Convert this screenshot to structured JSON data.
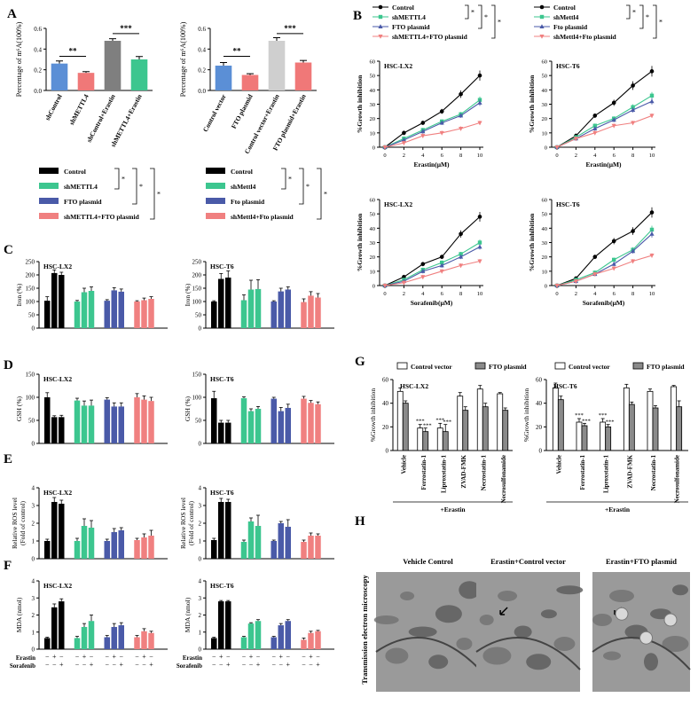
{
  "colors": {
    "black": "#000000",
    "green": "#3cc68f",
    "blue": "#4a5aa8",
    "pink": "#f08080",
    "gray1": "#7f7f7f",
    "gray2": "#b7b7b7",
    "blueA": "#5b8fd6",
    "pinkA": "#f07878",
    "lgray": "#cfcfcf",
    "white": "#ffffff",
    "dgray": "#8a8a8a"
  },
  "panel_letters": {
    "A": "A",
    "B": "B",
    "C": "C",
    "D": "D",
    "E": "E",
    "F": "F",
    "G": "G",
    "H": "H"
  },
  "panelA": {
    "ylabel": "Percentage of m⁶A(100%)",
    "sig": [
      "**",
      "***"
    ],
    "left": {
      "categories": [
        "shControl",
        "shMETTL4",
        "shControl+Erastin",
        "shMETTL4+Erastin"
      ],
      "values": [
        0.26,
        0.17,
        0.48,
        0.3
      ],
      "errors": [
        0.025,
        0.012,
        0.02,
        0.028
      ],
      "ylim": [
        0,
        0.6
      ],
      "ticks": [
        "0.0",
        "0.2",
        "0.4",
        "0.6"
      ]
    },
    "right": {
      "categories": [
        "Control vector",
        "FTO plasmid",
        "Control vector+Erastin",
        "FTO plasmid+Erastin"
      ],
      "values": [
        0.24,
        0.15,
        0.48,
        0.27
      ],
      "errors": [
        0.03,
        0.012,
        0.03,
        0.02
      ],
      "ylim": [
        0,
        0.6
      ],
      "ticks": [
        "0.0",
        "0.2",
        "0.4",
        "0.6"
      ]
    }
  },
  "panelB": {
    "legend_left": [
      "Control",
      "shMETTL4",
      "FTO plasmid",
      "shMETTL4+FTO plasmid"
    ],
    "legend_right": [
      "Control",
      "shMettl4",
      "Fto plasmid",
      "shMettl4+Fto plasmid"
    ],
    "ylabel": "%Growth inhibition",
    "xticks": [
      "0",
      "2",
      "4",
      "6",
      "8",
      "10"
    ],
    "yticks": [
      "0",
      "10",
      "20",
      "30",
      "40",
      "50",
      "60"
    ],
    "charts": [
      {
        "title": "HSC-LX2",
        "xlabel": "Erastin(μM)",
        "x": [
          0,
          2,
          4,
          6,
          8,
          10
        ],
        "series": [
          {
            "name": "Control",
            "values": [
              0,
              10,
              17,
              25,
              37,
              50
            ]
          },
          {
            "name": "shMETTL4",
            "values": [
              0,
              6,
              12,
              18,
              23,
              33
            ]
          },
          {
            "name": "FTO plasmid",
            "values": [
              0,
              5,
              11,
              17,
              22,
              31
            ]
          },
          {
            "name": "shMETTL4+FTO plasmid",
            "values": [
              0,
              3,
              8,
              10,
              13,
              17
            ]
          }
        ]
      },
      {
        "title": "HSC-T6",
        "xlabel": "Erastin(μM)",
        "x": [
          0,
          2,
          4,
          6,
          8,
          10
        ],
        "series": [
          {
            "name": "Control",
            "values": [
              0,
              8,
              22,
              31,
              43,
              53
            ]
          },
          {
            "name": "shMettl4",
            "values": [
              0,
              7,
              15,
              20,
              28,
              36
            ]
          },
          {
            "name": "Fto plasmid",
            "values": [
              0,
              6,
              13,
              19,
              26,
              32
            ]
          },
          {
            "name": "shMettl4+Fto plasmid",
            "values": [
              0,
              6,
              10,
              15,
              17,
              22
            ]
          }
        ]
      },
      {
        "title": "HSC-LX2",
        "xlabel": "Sorafenib(μM)",
        "x": [
          0,
          2,
          4,
          6,
          8,
          10
        ],
        "series": [
          {
            "name": "Control",
            "values": [
              0,
              6,
              15,
              20,
              36,
              48
            ]
          },
          {
            "name": "shMETTL4",
            "values": [
              0,
              4,
              11,
              16,
              22,
              30
            ]
          },
          {
            "name": "FTO plasmid",
            "values": [
              0,
              3,
              10,
              14,
              20,
              27
            ]
          },
          {
            "name": "shMETTL4+FTO plasmid",
            "values": [
              0,
              2,
              6,
              10,
              14,
              17
            ]
          }
        ]
      },
      {
        "title": "HSC-T6",
        "xlabel": "Sorafenib(μM)",
        "x": [
          0,
          2,
          4,
          6,
          8,
          10
        ],
        "series": [
          {
            "name": "Control",
            "values": [
              0,
              5,
              20,
              31,
              38,
              51
            ]
          },
          {
            "name": "shMettl4",
            "values": [
              0,
              4,
              9,
              18,
              25,
              39
            ]
          },
          {
            "name": "Fto plasmid",
            "values": [
              0,
              3,
              8,
              15,
              24,
              36
            ]
          },
          {
            "name": "shMettl4+Fto plasmid",
            "values": [
              0,
              3,
              8,
              12,
              17,
              21
            ]
          }
        ]
      }
    ]
  },
  "groupLegend": {
    "left": [
      "Control",
      "shMETTL4",
      "FTO plasmid",
      "shMETTL4+FTO plasmid"
    ],
    "right": [
      "Control",
      "shMettl4",
      "Fto plasmid",
      "shMettl4+Fto plasmid"
    ]
  },
  "panelsCDEF": {
    "rows": [
      {
        "key": "C",
        "ylabel": "Iron (%)",
        "yticks": [
          "0",
          "50",
          "100",
          "150",
          "200",
          "250"
        ],
        "ylim": [
          0,
          250
        ],
        "charts": [
          {
            "title": "HSC-LX2",
            "values": [
              [
                103,
                207,
                200
              ],
              [
                100,
                135,
                140
              ],
              [
                103,
                142,
                137
              ],
              [
                100,
                105,
                110
              ]
            ],
            "errors": [
              [
                15,
                12,
                10
              ],
              [
                4,
                15,
                15
              ],
              [
                4,
                10,
                10
              ],
              [
                3,
                8,
                8
              ]
            ]
          },
          {
            "title": "HSC-T6",
            "values": [
              [
                100,
                185,
                190
              ],
              [
                105,
                145,
                147
              ],
              [
                100,
                138,
                145
              ],
              [
                98,
                122,
                115
              ]
            ],
            "errors": [
              [
                3,
                20,
                25
              ],
              [
                20,
                35,
                35
              ],
              [
                3,
                12,
                10
              ],
              [
                12,
                15,
                15
              ]
            ]
          }
        ]
      },
      {
        "key": "D",
        "ylabel": "GSH (%)",
        "yticks": [
          "0",
          "50",
          "100",
          "150"
        ],
        "ylim": [
          0,
          150
        ],
        "charts": [
          {
            "title": "HSC-LX2",
            "values": [
              [
                100,
                57,
                57
              ],
              [
                93,
                82,
                82
              ],
              [
                95,
                80,
                80
              ],
              [
                100,
                95,
                92
              ]
            ],
            "errors": [
              [
                10,
                3,
                4
              ],
              [
                5,
                10,
                12
              ],
              [
                4,
                8,
                8
              ],
              [
                8,
                8,
                8
              ]
            ]
          },
          {
            "title": "HSC-T6",
            "values": [
              [
                98,
                45,
                45
              ],
              [
                98,
                70,
                75
              ],
              [
                97,
                70,
                77
              ],
              [
                97,
                88,
                85
              ]
            ],
            "errors": [
              [
                15,
                5,
                5
              ],
              [
                3,
                5,
                5
              ],
              [
                3,
                8,
                8
              ],
              [
                5,
                5,
                5
              ]
            ]
          }
        ]
      },
      {
        "key": "E",
        "ylabel": "Relative ROS level\n(Fold of control)",
        "yticks": [
          "0",
          "1",
          "2",
          "3",
          "4"
        ],
        "ylim": [
          0,
          4
        ],
        "charts": [
          {
            "title": "HSC-LX2",
            "values": [
              [
                1.0,
                3.2,
                3.1
              ],
              [
                1.0,
                1.85,
                1.75
              ],
              [
                1.0,
                1.5,
                1.6
              ],
              [
                1.05,
                1.2,
                1.3
              ]
            ],
            "errors": [
              [
                0.1,
                0.25,
                0.2
              ],
              [
                0.15,
                0.4,
                0.4
              ],
              [
                0.1,
                0.2,
                0.15
              ],
              [
                0.1,
                0.2,
                0.3
              ]
            ]
          },
          {
            "title": "HSC-T6",
            "values": [
              [
                1.05,
                3.2,
                3.2
              ],
              [
                0.95,
                2.1,
                1.85
              ],
              [
                1.0,
                2.0,
                1.8
              ],
              [
                0.95,
                1.3,
                1.3
              ]
            ],
            "errors": [
              [
                0.1,
                0.2,
                0.15
              ],
              [
                0.1,
                0.2,
                0.6
              ],
              [
                0.05,
                0.1,
                0.4
              ],
              [
                0.1,
                0.15,
                0.1
              ]
            ]
          }
        ]
      },
      {
        "key": "F",
        "ylabel": "MDA (nmol)",
        "yticks": [
          "0",
          "1",
          "2",
          "3",
          "4"
        ],
        "ylim": [
          0,
          4
        ],
        "charts": [
          {
            "title": "HSC-LX2",
            "values": [
              [
                0.65,
                2.45,
                2.8
              ],
              [
                0.65,
                1.3,
                1.65
              ],
              [
                0.7,
                1.3,
                1.4
              ],
              [
                0.7,
                1.05,
                0.95
              ]
            ],
            "errors": [
              [
                0.05,
                0.2,
                0.15
              ],
              [
                0.1,
                0.2,
                0.35
              ],
              [
                0.1,
                0.2,
                0.15
              ],
              [
                0.1,
                0.15,
                0.1
              ]
            ]
          },
          {
            "title": "HSC-T6",
            "values": [
              [
                0.65,
                2.8,
                2.8
              ],
              [
                0.7,
                1.5,
                1.65
              ],
              [
                0.7,
                1.4,
                1.65
              ],
              [
                0.55,
                0.95,
                1.05
              ]
            ],
            "errors": [
              [
                0.05,
                0.05,
                0.05
              ],
              [
                0.05,
                0.05,
                0.08
              ],
              [
                0.05,
                0.1,
                0.08
              ],
              [
                0.1,
                0.1,
                0.05
              ]
            ]
          }
        ]
      }
    ],
    "treatment_labels": [
      "Erastin",
      "Sorafenib"
    ],
    "erastin_signs": [
      "−",
      "+",
      "−",
      "−",
      "+",
      "−",
      "−",
      "+",
      "−",
      "−",
      "+",
      "−"
    ],
    "sorafenib_signs": [
      "−",
      "−",
      "+",
      "−",
      "−",
      "+",
      "−",
      "−",
      "+",
      "−",
      "−",
      "+"
    ]
  },
  "panelG": {
    "legend": [
      "Control vector",
      "FTO plasmid"
    ],
    "ylabel": "%Growth inhibition",
    "yticks": [
      "0",
      "20",
      "40",
      "60"
    ],
    "ylim": [
      0,
      60
    ],
    "categories": [
      "Vehicle",
      "Ferrostatin-1",
      "Liproxstatin-1",
      "ZVAD-FMK",
      "Necrostatin-1",
      "Necrosulfonamide"
    ],
    "footer": "+Erastin",
    "charts": [
      {
        "title": "HSC-LX2",
        "control": [
          50,
          19,
          19,
          46,
          52,
          48
        ],
        "fto": [
          40,
          16,
          16,
          34,
          37,
          34
        ],
        "cerr": [
          3,
          3,
          4,
          3,
          3,
          1
        ],
        "ferr": [
          2,
          3,
          6,
          3,
          3,
          2
        ],
        "sig": [
          [
            "***",
            "***"
          ],
          [
            "***",
            "***"
          ]
        ]
      },
      {
        "title": "HSC-T6",
        "control": [
          53,
          24,
          24,
          53,
          50,
          54
        ],
        "fto": [
          43,
          21,
          20,
          39,
          36,
          37
        ],
        "cerr": [
          4,
          3,
          3,
          3,
          2,
          1
        ],
        "ferr": [
          3,
          2,
          2,
          2,
          2,
          5
        ],
        "sig": [
          [
            "***",
            "***"
          ],
          [
            "***",
            "***"
          ]
        ]
      }
    ]
  },
  "panelH": {
    "side_label": "Transmission electron microscopy",
    "titles": [
      "Vehicle Control",
      "Erastin+Control vector",
      "Erastin+FTO plasmid"
    ]
  }
}
